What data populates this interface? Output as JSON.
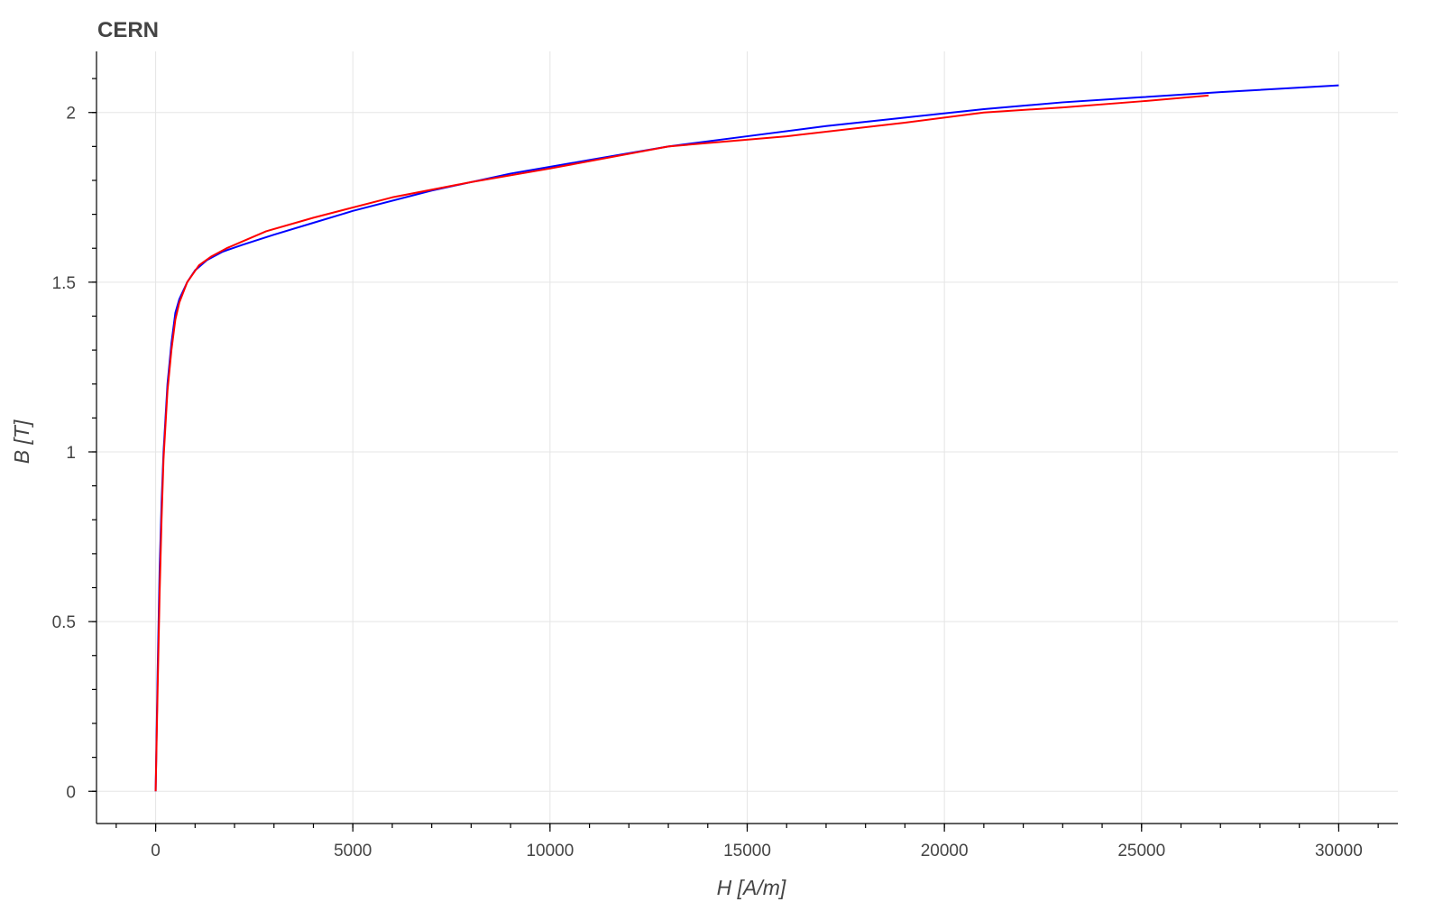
{
  "chart_data": {
    "type": "line",
    "title": "CERN",
    "xlabel": "H [A/m]",
    "ylabel": "B [T]",
    "xlim": [
      -1500,
      31500
    ],
    "ylim": [
      -0.095,
      2.18
    ],
    "grid": true,
    "xticks": [
      0,
      5000,
      10000,
      15000,
      20000,
      25000,
      30000
    ],
    "xtick_labels": [
      "0",
      "5000",
      "10000",
      "15000",
      "20000",
      "25000",
      "30000"
    ],
    "yticks": [
      0,
      0.5,
      1,
      1.5,
      2
    ],
    "ytick_labels": [
      "0",
      "0.5",
      "1",
      "1.5",
      "2"
    ],
    "series": [
      {
        "color": "#0000ff",
        "x": [
          0,
          50,
          100,
          150,
          200,
          250,
          300,
          400,
          500,
          600,
          800,
          1000,
          1300,
          1700,
          2200,
          3000,
          4000,
          5000,
          7000,
          9000,
          11000,
          13000,
          15000,
          17000,
          19000,
          21000,
          23000,
          25000,
          27000,
          30000
        ],
        "y": [
          0,
          0.35,
          0.65,
          0.85,
          1.0,
          1.1,
          1.2,
          1.32,
          1.41,
          1.45,
          1.5,
          1.535,
          1.565,
          1.59,
          1.61,
          1.64,
          1.675,
          1.71,
          1.77,
          1.82,
          1.86,
          1.9,
          1.93,
          1.96,
          1.985,
          2.01,
          2.03,
          2.045,
          2.06,
          2.08
        ]
      },
      {
        "color": "#ff0000",
        "x": [
          0,
          50,
          100,
          150,
          200,
          250,
          300,
          400,
          500,
          600,
          800,
          1100,
          1400,
          1800,
          2200,
          2800,
          4000,
          6000,
          8000,
          10000,
          13000,
          16000,
          19000,
          21000,
          23000,
          25000,
          26700
        ],
        "y": [
          0,
          0.3,
          0.58,
          0.8,
          0.98,
          1.08,
          1.18,
          1.3,
          1.39,
          1.44,
          1.5,
          1.55,
          1.575,
          1.6,
          1.62,
          1.65,
          1.69,
          1.75,
          1.795,
          1.835,
          1.9,
          1.93,
          1.97,
          2.0,
          2.015,
          2.033,
          2.05
        ]
      }
    ]
  }
}
